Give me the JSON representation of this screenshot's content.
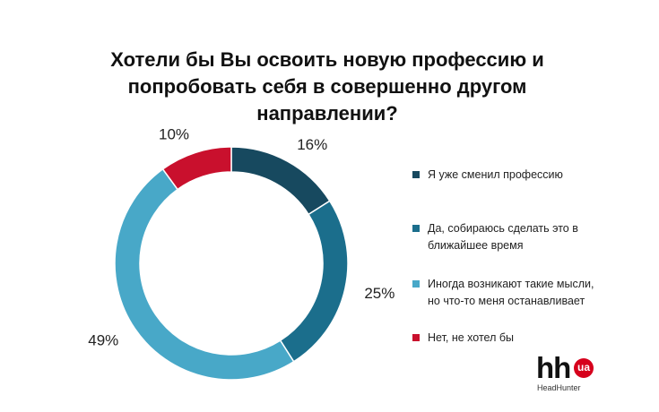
{
  "chart_data": {
    "type": "pie",
    "title_lines": [
      "Хотели бы Вы освоить новую профессию и",
      "попробовать себя в совершенно другом",
      "направлении?"
    ],
    "slices": [
      {
        "label": "Я уже сменил профессию",
        "value": 16,
        "value_label": "16%",
        "color": "#17495f"
      },
      {
        "label": "Да, собираюсь сделать это в ближайшее время",
        "value": 25,
        "value_label": "25%",
        "color": "#1b6e8c"
      },
      {
        "label": "Иногда возникают такие мысли, но что-то меня останавливает",
        "value": 49,
        "value_label": "49%",
        "color": "#48a8c8"
      },
      {
        "label": "Нет, не хотел бы",
        "value": 10,
        "value_label": "10%",
        "color": "#c9102d"
      }
    ],
    "legend_placement": "right"
  },
  "legend": {
    "items": [
      {
        "lines": [
          "Я уже сменил профессию"
        ]
      },
      {
        "lines": [
          "Да, собираюсь сделать это в",
          "ближайшее время"
        ]
      },
      {
        "lines": [
          "Иногда возникают такие мысли,",
          "но что-то меня останавливает"
        ]
      },
      {
        "lines": [
          "Нет, не хотел бы"
        ]
      }
    ]
  },
  "logo": {
    "main": "hh",
    "badge": "ua",
    "subtitle": "HeadHunter"
  }
}
